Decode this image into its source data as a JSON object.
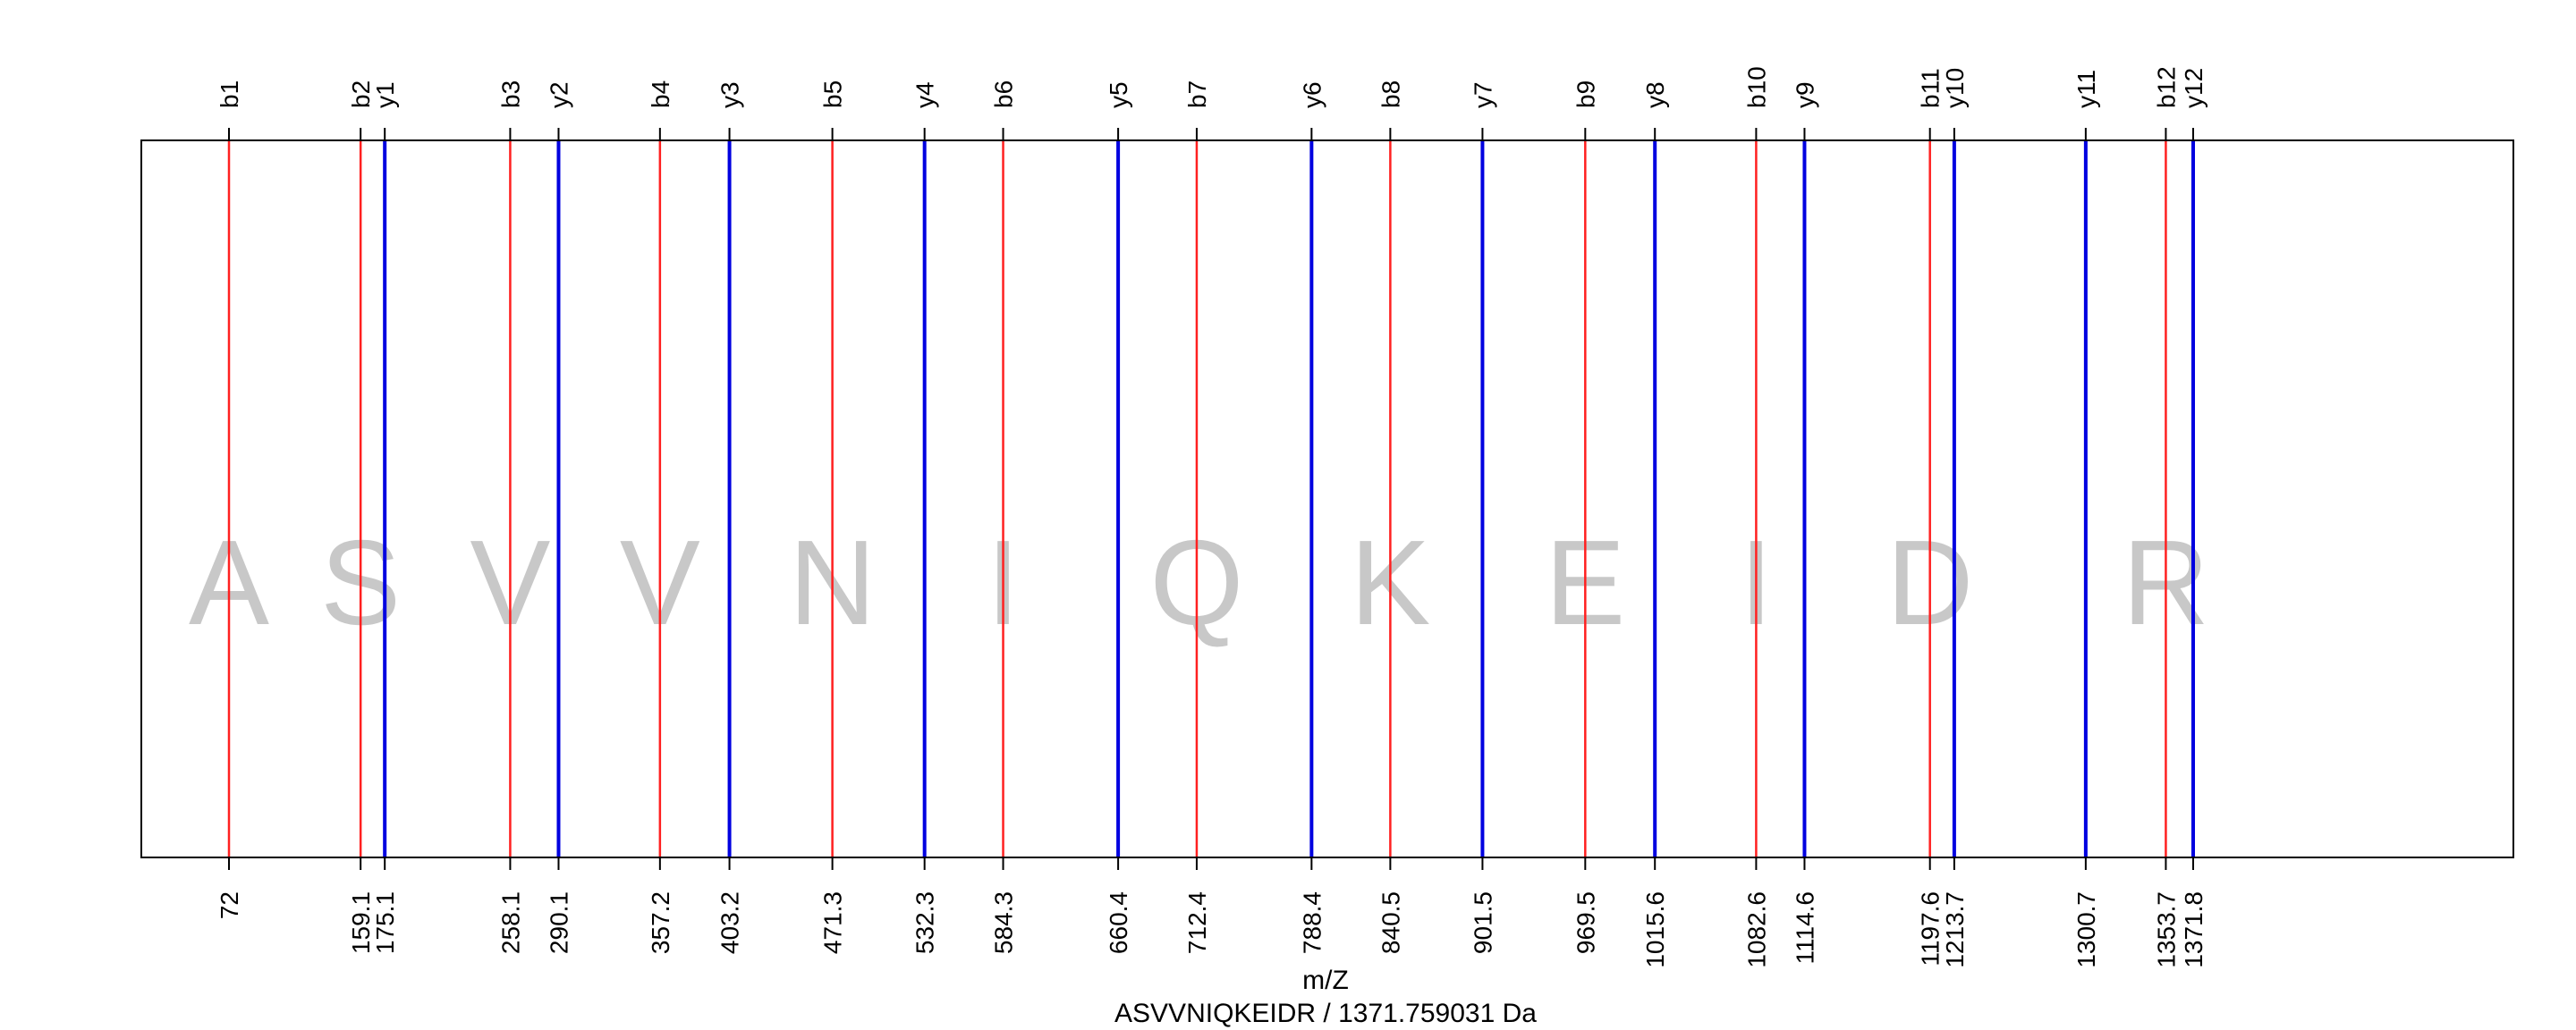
{
  "chart_data": {
    "type": "spectrum",
    "xlabel": "m/Z",
    "subtitle": "ASVVNIQKEIDR / 1371.759031 Da",
    "xlim": [
      0,
      1450
    ],
    "grid": false,
    "colors": {
      "b": "#ff2020",
      "y": "#0000e0",
      "residue": "#c8c8c8"
    },
    "peaks": [
      {
        "ion": "b1",
        "type": "b",
        "mz": 72,
        "label": "72"
      },
      {
        "ion": "b2",
        "type": "b",
        "mz": 159.1,
        "label": "159.1"
      },
      {
        "ion": "y1",
        "type": "y",
        "mz": 175.1,
        "label": "175.1"
      },
      {
        "ion": "b3",
        "type": "b",
        "mz": 258.1,
        "label": "258.1"
      },
      {
        "ion": "y2",
        "type": "y",
        "mz": 290.1,
        "label": "290.1"
      },
      {
        "ion": "b4",
        "type": "b",
        "mz": 357.2,
        "label": "357.2"
      },
      {
        "ion": "y3",
        "type": "y",
        "mz": 403.2,
        "label": "403.2"
      },
      {
        "ion": "b5",
        "type": "b",
        "mz": 471.3,
        "label": "471.3"
      },
      {
        "ion": "y4",
        "type": "y",
        "mz": 532.3,
        "label": "532.3"
      },
      {
        "ion": "b6",
        "type": "b",
        "mz": 584.3,
        "label": "584.3"
      },
      {
        "ion": "y5",
        "type": "y",
        "mz": 660.4,
        "label": "660.4"
      },
      {
        "ion": "b7",
        "type": "b",
        "mz": 712.4,
        "label": "712.4"
      },
      {
        "ion": "y6",
        "type": "y",
        "mz": 788.4,
        "label": "788.4"
      },
      {
        "ion": "b8",
        "type": "b",
        "mz": 840.5,
        "label": "840.5"
      },
      {
        "ion": "y7",
        "type": "y",
        "mz": 901.5,
        "label": "901.5"
      },
      {
        "ion": "b9",
        "type": "b",
        "mz": 969.5,
        "label": "969.5"
      },
      {
        "ion": "y8",
        "type": "y",
        "mz": 1015.6,
        "label": "1015.6"
      },
      {
        "ion": "b10",
        "type": "b",
        "mz": 1082.6,
        "label": "1082.6"
      },
      {
        "ion": "y9",
        "type": "y",
        "mz": 1114.6,
        "label": "1114.6"
      },
      {
        "ion": "b11",
        "type": "b",
        "mz": 1197.6,
        "label": "1197.6"
      },
      {
        "ion": "y10",
        "type": "y",
        "mz": 1213.7,
        "label": "1213.7"
      },
      {
        "ion": "y11",
        "type": "y",
        "mz": 1300.7,
        "label": "1300.7"
      },
      {
        "ion": "b12",
        "type": "b",
        "mz": 1353.7,
        "label": "1353.7"
      },
      {
        "ion": "y12",
        "type": "y",
        "mz": 1371.8,
        "label": "1371.8"
      }
    ],
    "residues": [
      {
        "letter": "A",
        "mz": 72
      },
      {
        "letter": "S",
        "mz": 159.1
      },
      {
        "letter": "V",
        "mz": 258.1
      },
      {
        "letter": "V",
        "mz": 357.2
      },
      {
        "letter": "N",
        "mz": 471.3
      },
      {
        "letter": "I",
        "mz": 584.3
      },
      {
        "letter": "Q",
        "mz": 712.4
      },
      {
        "letter": "K",
        "mz": 840.5
      },
      {
        "letter": "E",
        "mz": 969.5
      },
      {
        "letter": "I",
        "mz": 1082.6
      },
      {
        "letter": "D",
        "mz": 1197.6
      },
      {
        "letter": "R",
        "mz": 1353.7
      }
    ]
  }
}
